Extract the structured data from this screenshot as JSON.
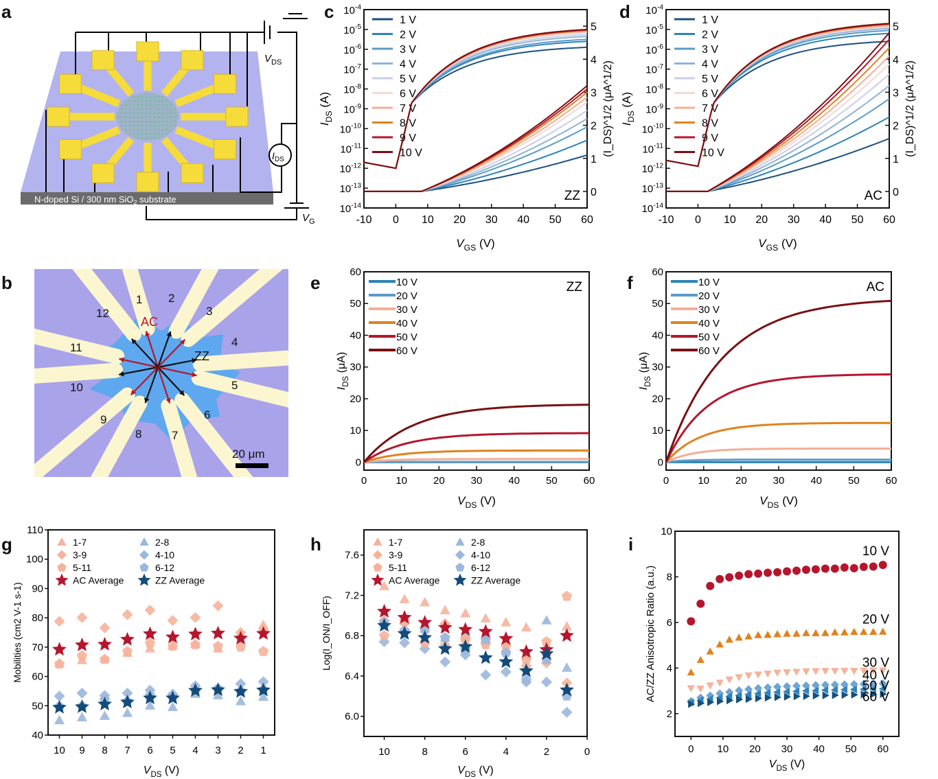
{
  "panel_labels": {
    "a": "a",
    "b": "b",
    "c": "c",
    "d": "d",
    "e": "e",
    "f": "f",
    "g": "g",
    "h": "h",
    "i": "i"
  },
  "colors": {
    "v_gate_1": "#1b4f80",
    "v_gate_2": "#2b83b8",
    "v_gate_3": "#5b9bc9",
    "v_gate_4": "#8fb2d6",
    "v_gate_5": "#c9cfe6",
    "v_gate_6": "#f3d9d3",
    "v_gate_7": "#f5ad95",
    "v_gate_8": "#e0821d",
    "v_gate_9": "#b5162d",
    "v_gate_10": "#7a0f12",
    "ac_light": "#f6b29a",
    "zz_light": "#9bb7db",
    "ac_avg": "#b5162d",
    "zz_avg": "#134b7a",
    "substrate": "#b3b3ef",
    "gold": "#f5dc3a"
  },
  "schematic": {
    "substrate_label": "N-doped Si / 300 nm SiO",
    "substrate_sub": "2",
    "substrate_suffix": " substrate",
    "vds_label": "V",
    "vds_sub": "DS",
    "ids_label": "I",
    "ids_sub": "DS",
    "vg_label": "V",
    "vg_sub": "G"
  },
  "micrograph": {
    "electrodes": [
      "1",
      "2",
      "3",
      "4",
      "5",
      "6",
      "7",
      "8",
      "9",
      "10",
      "11",
      "12"
    ],
    "ac_label": "AC",
    "zz_label": "ZZ",
    "scale_bar": "20 μm"
  },
  "chart_data": [
    {
      "id": "c",
      "type": "line",
      "title": "",
      "annotation": "ZZ",
      "xlabel": "V_GS (V)",
      "ylabel_left": "I_DS (A)",
      "ylabel_right": "(I_DS)^1/2 (μA^1/2)",
      "xlim": [
        -10,
        60
      ],
      "xticks": [
        "-10",
        "0",
        "10",
        "20",
        "30",
        "40",
        "50",
        "60"
      ],
      "ylim_left_log10": [
        -14,
        -4
      ],
      "yticks_left": [
        "10-14",
        "10-13",
        "10-12",
        "10-11",
        "10-10",
        "10-9",
        "10-8",
        "10-7",
        "10-6",
        "10-5",
        "10-4"
      ],
      "ylim_right": [
        -0.5,
        5.5
      ],
      "yticks_right": [
        "0",
        "1",
        "2",
        "3",
        "4",
        "5"
      ],
      "legend": [
        "1 V",
        "2 V",
        "3 V",
        "4 V",
        "5 V",
        "6 V",
        "7 V",
        "8 V",
        "9 V",
        "10 V"
      ],
      "legend_position": "top-left",
      "series_log_end_at_60V": [
        -5.9,
        -5.6,
        -5.5,
        -5.35,
        -5.25,
        -5.15,
        -5.1,
        -5.05,
        -5.02,
        -5.0
      ],
      "series_sqrt_end_at_60V": [
        1.1,
        1.55,
        1.95,
        2.2,
        2.45,
        2.7,
        2.85,
        3.0,
        3.1,
        3.2
      ],
      "off_current_log10": -11.7,
      "sqrt_onset_V": 8
    },
    {
      "id": "d",
      "type": "line",
      "title": "",
      "annotation": "AC",
      "xlabel": "V_GS (V)",
      "ylabel_left": "I_DS (A)",
      "ylabel_right": "(I_DS)^1/2 (μA^1/2)",
      "xlim": [
        -10,
        60
      ],
      "xticks": [
        "-10",
        "0",
        "10",
        "20",
        "30",
        "40",
        "50",
        "60"
      ],
      "ylim_left_log10": [
        -14,
        -4
      ],
      "yticks_left": [
        "10-14",
        "10-13",
        "10-12",
        "10-11",
        "10-10",
        "10-9",
        "10-8",
        "10-7",
        "10-6",
        "10-5",
        "10-4"
      ],
      "ylim_right": [
        -0.5,
        5.5
      ],
      "yticks_right": [
        "0",
        "1",
        "2",
        "3",
        "4",
        "5"
      ],
      "legend": [
        "1 V",
        "2 V",
        "3 V",
        "4 V",
        "5 V",
        "6 V",
        "7 V",
        "8 V",
        "9 V",
        "10 V"
      ],
      "legend_position": "top-left",
      "series_log_end_at_60V": [
        -5.6,
        -5.2,
        -5.05,
        -4.95,
        -4.9,
        -4.85,
        -4.8,
        -4.75,
        -4.72,
        -4.7
      ],
      "series_sqrt_end_at_60V": [
        1.6,
        2.25,
        2.8,
        3.2,
        3.55,
        3.85,
        4.1,
        4.35,
        4.6,
        4.8
      ],
      "off_current_log10": -11.6,
      "sqrt_onset_V": 3
    },
    {
      "id": "e",
      "type": "line",
      "title": "",
      "annotation": "ZZ",
      "xlabel": "V_DS (V)",
      "ylabel": "I_DS (μA)",
      "xlim": [
        0,
        60
      ],
      "ylim": [
        -2.5,
        60
      ],
      "xticks": [
        "0",
        "10",
        "20",
        "30",
        "40",
        "50",
        "60"
      ],
      "yticks": [
        "0",
        "10",
        "20",
        "30",
        "40",
        "50",
        "60"
      ],
      "legend": [
        "10 V",
        "20 V",
        "30 V",
        "40 V",
        "50 V",
        "60 V"
      ],
      "legend_position": "top-left",
      "series_saturation_uA": [
        0.0,
        0.1,
        1.0,
        3.7,
        9.2,
        18.3
      ],
      "series_tau_V": [
        6,
        6,
        7,
        9,
        11,
        13
      ]
    },
    {
      "id": "f",
      "type": "line",
      "title": "",
      "annotation": "AC",
      "xlabel": "V_DS (V)",
      "ylabel": "I_DS (μA)",
      "xlim": [
        0,
        60
      ],
      "ylim": [
        -2.5,
        60
      ],
      "xticks": [
        "0",
        "10",
        "20",
        "30",
        "40",
        "50",
        "60"
      ],
      "yticks": [
        "0",
        "10",
        "20",
        "30",
        "40",
        "50",
        "60"
      ],
      "legend": [
        "10 V",
        "20 V",
        "30 V",
        "40 V",
        "50 V",
        "60 V"
      ],
      "legend_position": "top-left",
      "series_saturation_uA": [
        0.0,
        0.8,
        4.3,
        12.4,
        27.8,
        51.8
      ],
      "series_tau_V": [
        4,
        5,
        7,
        9,
        11,
        15
      ]
    },
    {
      "id": "g",
      "type": "scatter",
      "title": "",
      "xlabel": "V_DS (V)",
      "ylabel": "Mobilities (cm2 V-1 s-1)",
      "x": [
        10,
        9,
        8,
        7,
        6,
        5,
        4,
        3,
        2,
        1
      ],
      "xticks": [
        "10",
        "9",
        "8",
        "7",
        "6",
        "5",
        "4",
        "3",
        "2",
        "1"
      ],
      "xlim": [
        10.5,
        0.5
      ],
      "ylim": [
        40,
        110
      ],
      "yticks": [
        "40",
        "50",
        "60",
        "70",
        "80",
        "90",
        "100",
        "110"
      ],
      "legend_position": "top-left",
      "series": [
        {
          "name": "1-7",
          "marker": "triangle",
          "group": "ac",
          "values": [
            64.5,
            65.5,
            66,
            68,
            69.5,
            70.5,
            71,
            69.5,
            74.5,
            77.5
          ]
        },
        {
          "name": "2-8",
          "marker": "triangle",
          "group": "zz",
          "values": [
            45,
            46,
            46.5,
            47.5,
            50,
            49.5,
            54,
            53.5,
            51.5,
            53
          ]
        },
        {
          "name": "3-9",
          "marker": "diamond",
          "group": "ac",
          "values": [
            78.8,
            80.1,
            76.6,
            81.1,
            82.6,
            79.1,
            80.1,
            84.1,
            75,
            76
          ]
        },
        {
          "name": "4-10",
          "marker": "diamond",
          "group": "zz",
          "values": [
            53.3,
            54.3,
            53.5,
            54.3,
            55.3,
            54,
            56.8,
            55.8,
            57.5,
            58.2
          ]
        },
        {
          "name": "5-11",
          "marker": "pentagon",
          "group": "ac",
          "values": [
            64.2,
            67,
            65.8,
            68.5,
            71.3,
            70.3,
            70.8,
            70.3,
            70,
            68.5
          ]
        },
        {
          "name": "6-12",
          "marker": "pentagon",
          "group": "zz",
          "values": [
            49.7,
            49.8,
            52,
            51.5,
            53.5,
            53,
            55,
            55.8,
            55,
            55.5
          ]
        },
        {
          "name": "AC Average",
          "marker": "star",
          "group": "ac_avg",
          "values": [
            69.2,
            70.7,
            70.9,
            72.6,
            74.5,
            73.4,
            74.4,
            74.7,
            73,
            74.6
          ]
        },
        {
          "name": "ZZ Average",
          "marker": "star",
          "group": "zz_avg",
          "values": [
            49.4,
            49.6,
            50.5,
            51.2,
            52.6,
            52.6,
            55.2,
            55.4,
            54.8,
            55.3
          ]
        }
      ]
    },
    {
      "id": "h",
      "type": "scatter",
      "title": "",
      "xlabel": "V_DS (V)",
      "ylabel": "Log(I_ON/I_OFF)",
      "x": [
        10,
        9,
        8,
        7,
        6,
        5,
        4,
        3,
        2,
        1
      ],
      "xticks": [
        "10",
        "8",
        "6",
        "4",
        "2",
        "0"
      ],
      "xlim": [
        11,
        0
      ],
      "ylim": [
        5.8,
        7.85
      ],
      "yticks": [
        "6.0",
        "6.4",
        "6.8",
        "7.2",
        "7.6"
      ],
      "legend_position": "top-left",
      "series": [
        {
          "name": "1-7",
          "marker": "triangle",
          "group": "ac",
          "values": [
            7.29,
            7.16,
            7.13,
            7.05,
            7.02,
            6.97,
            6.93,
            6.88,
            6.7,
            6.89
          ]
        },
        {
          "name": "2-8",
          "marker": "triangle",
          "group": "zz",
          "values": [
            6.92,
            6.95,
            6.87,
            6.78,
            6.82,
            6.77,
            6.65,
            6.6,
            6.95,
            6.48
          ]
        },
        {
          "name": "3-9",
          "marker": "diamond",
          "group": "ac",
          "values": [
            6.95,
            6.92,
            6.88,
            6.92,
            6.77,
            6.72,
            6.72,
            6.5,
            6.53,
            6.33
          ]
        },
        {
          "name": "4-10",
          "marker": "diamond",
          "group": "zz",
          "values": [
            6.74,
            6.73,
            6.67,
            6.54,
            6.61,
            6.41,
            6.44,
            6.34,
            6.34,
            6.04
          ]
        },
        {
          "name": "5-11",
          "marker": "pentagon",
          "group": "ac",
          "values": [
            6.8,
            6.95,
            6.73,
            6.7,
            6.75,
            6.71,
            6.69,
            6.56,
            6.74,
            7.19
          ]
        },
        {
          "name": "6-12",
          "marker": "pentagon",
          "group": "zz",
          "values": [
            6.93,
            6.85,
            6.86,
            6.78,
            6.66,
            6.76,
            6.63,
            6.36,
            6.56,
            6.2
          ]
        },
        {
          "name": "AC Average",
          "marker": "star",
          "group": "ac_avg",
          "values": [
            7.04,
            6.98,
            6.93,
            6.88,
            6.86,
            6.84,
            6.77,
            6.64,
            6.66,
            6.8
          ]
        },
        {
          "name": "ZZ Average",
          "marker": "star",
          "group": "zz_avg",
          "values": [
            6.9,
            6.82,
            6.78,
            6.67,
            6.69,
            6.58,
            6.54,
            6.45,
            6.62,
            6.26
          ]
        }
      ]
    },
    {
      "id": "i",
      "type": "scatter",
      "title": "",
      "xlabel": "V_DS (V)",
      "ylabel": "AC/ZZ Anisotropic Ratio (a.u.)",
      "x": [
        0,
        3,
        6,
        9,
        12,
        15,
        18,
        21,
        24,
        27,
        30,
        33,
        36,
        39,
        42,
        45,
        48,
        51,
        54,
        57,
        60
      ],
      "xticks": [
        "0",
        "10",
        "20",
        "30",
        "40",
        "50",
        "60"
      ],
      "xlim": [
        -5,
        65
      ],
      "ylim": [
        1,
        10
      ],
      "yticks": [
        "2",
        "4",
        "6",
        "8",
        "10"
      ],
      "series": [
        {
          "name": "10 V",
          "marker": "circle",
          "color": "#b5162d",
          "values": [
            6.05,
            6.82,
            7.6,
            7.9,
            7.98,
            8.05,
            8.12,
            8.14,
            8.18,
            8.2,
            8.24,
            8.27,
            8.31,
            8.33,
            8.36,
            8.36,
            8.41,
            8.38,
            8.44,
            8.45,
            8.52
          ]
        },
        {
          "name": "20 V",
          "marker": "triangle",
          "color": "#e0821d",
          "values": [
            3.8,
            4.35,
            4.72,
            5.03,
            5.24,
            5.33,
            5.38,
            5.44,
            5.45,
            5.48,
            5.5,
            5.5,
            5.53,
            5.52,
            5.53,
            5.56,
            5.56,
            5.58,
            5.58,
            5.58,
            5.59
          ]
        },
        {
          "name": "30 V",
          "marker": "triangle-down",
          "color": "#f6b29a",
          "values": [
            3.12,
            3.1,
            3.24,
            3.36,
            3.5,
            3.6,
            3.68,
            3.72,
            3.76,
            3.8,
            3.82,
            3.84,
            3.86,
            3.87,
            3.88,
            3.88,
            3.88,
            3.88,
            3.89,
            3.9,
            3.9
          ]
        },
        {
          "name": "40 V",
          "marker": "diamond",
          "color": "#6fa5d2",
          "values": [
            2.55,
            2.7,
            2.79,
            2.88,
            2.95,
            3.02,
            3.07,
            3.12,
            3.15,
            3.18,
            3.2,
            3.22,
            3.23,
            3.25,
            3.26,
            3.27,
            3.28,
            3.29,
            3.3,
            3.3,
            3.32
          ]
        },
        {
          "name": "50 V",
          "marker": "triangle-left",
          "color": "#2f82bd",
          "values": [
            2.5,
            2.58,
            2.64,
            2.7,
            2.76,
            2.8,
            2.84,
            2.88,
            2.91,
            2.94,
            2.96,
            2.98,
            3.0,
            3.01,
            3.03,
            3.04,
            3.05,
            3.06,
            3.07,
            3.08,
            3.09
          ]
        },
        {
          "name": "60 V",
          "marker": "triangle-right",
          "color": "#14507e",
          "values": [
            2.42,
            2.46,
            2.5,
            2.54,
            2.58,
            2.62,
            2.64,
            2.67,
            2.7,
            2.72,
            2.74,
            2.76,
            2.77,
            2.79,
            2.8,
            2.81,
            2.82,
            2.83,
            2.84,
            2.85,
            2.86
          ]
        }
      ]
    }
  ]
}
